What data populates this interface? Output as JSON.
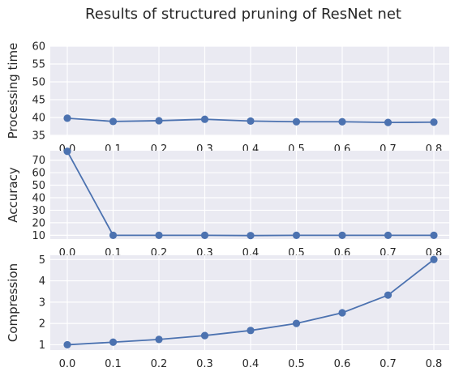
{
  "figure": {
    "title": "Results of structured pruning of ResNet net"
  },
  "chart_data": [
    {
      "type": "line",
      "title": "",
      "xlabel": "",
      "ylabel": "Processing time",
      "x": [
        0.0,
        0.1,
        0.2,
        0.3,
        0.4,
        0.5,
        0.6,
        0.7,
        0.8
      ],
      "x_tick_labels": [
        "0.0",
        "0.1",
        "0.2",
        "0.3",
        "0.4",
        "0.5",
        "0.6",
        "0.7",
        "0.8"
      ],
      "values": [
        39.8,
        38.9,
        39.1,
        39.5,
        39.0,
        38.8,
        38.8,
        38.6,
        38.7
      ],
      "ylim": [
        35,
        60
      ],
      "y_ticks": [
        35,
        40,
        45,
        50,
        55,
        60
      ],
      "grid": true,
      "color": "#4c72b0",
      "marker": "circle"
    },
    {
      "type": "line",
      "title": "",
      "xlabel": "",
      "ylabel": "Accuracy",
      "x": [
        0.0,
        0.1,
        0.2,
        0.3,
        0.4,
        0.5,
        0.6,
        0.7,
        0.8
      ],
      "x_tick_labels": [
        "0.0",
        "0.1",
        "0.2",
        "0.3",
        "0.4",
        "0.5",
        "0.6",
        "0.7",
        "0.8"
      ],
      "values": [
        77.0,
        10.0,
        10.0,
        10.0,
        9.8,
        10.0,
        10.0,
        10.0,
        10.0
      ],
      "ylim": [
        10,
        70
      ],
      "y_ticks": [
        10,
        20,
        30,
        40,
        50,
        60,
        70
      ],
      "grid": true,
      "color": "#4c72b0",
      "marker": "circle"
    },
    {
      "type": "line",
      "title": "",
      "xlabel": "",
      "ylabel": "Compression",
      "x": [
        0.0,
        0.1,
        0.2,
        0.3,
        0.4,
        0.5,
        0.6,
        0.7,
        0.8
      ],
      "x_tick_labels": [
        "0.0",
        "0.1",
        "0.2",
        "0.3",
        "0.4",
        "0.5",
        "0.6",
        "0.7",
        "0.8"
      ],
      "values": [
        1.0,
        1.12,
        1.25,
        1.43,
        1.67,
        2.0,
        2.5,
        3.33,
        5.0
      ],
      "ylim": [
        1,
        5
      ],
      "y_ticks": [
        1,
        2,
        3,
        4,
        5
      ],
      "grid": true,
      "color": "#4c72b0",
      "marker": "circle"
    }
  ]
}
